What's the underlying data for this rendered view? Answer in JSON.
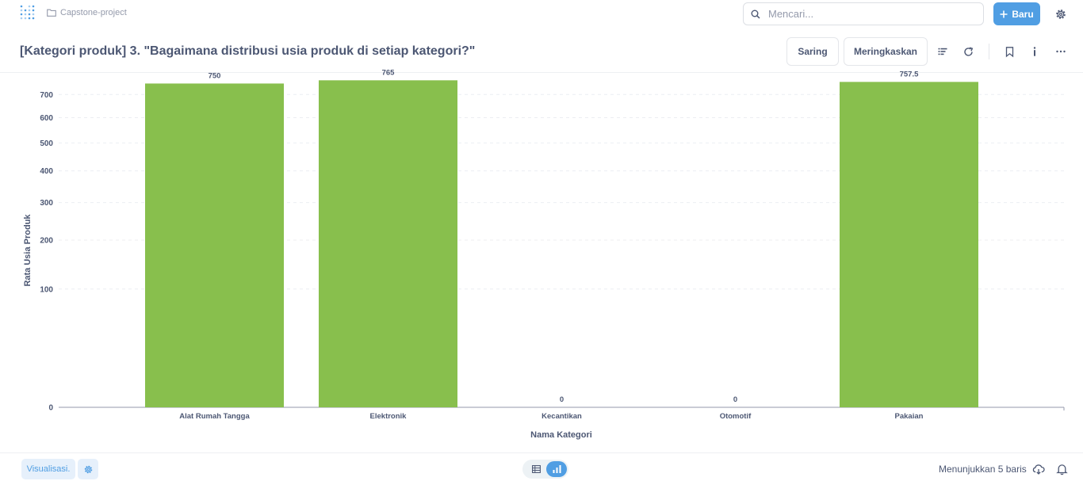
{
  "nav": {
    "collection": "Capstone-project",
    "search_placeholder": "Mencari...",
    "new_label": "Baru"
  },
  "header": {
    "title": "[Kategori produk] 3. \"Bagaimana distribusi usia produk di setiap kategori?\"",
    "filter_label": "Saring",
    "summarize_label": "Meringkaskan"
  },
  "footer": {
    "visualize_label": "Visualisasi.",
    "row_count": "Menunjukkan 5 baris"
  },
  "colors": {
    "accent": "#509ee3",
    "bar": "#88bf4d",
    "text": "#4c5773"
  },
  "chart_data": {
    "type": "bar",
    "xlabel": "Nama Kategori",
    "ylabel": "Rata Usia Produk",
    "categories": [
      "Alat Rumah Tangga",
      "Elektronik",
      "Kecantikan",
      "Otomotif",
      "Pakaian"
    ],
    "values": [
      750,
      765,
      0,
      0,
      757.5
    ],
    "value_labels": [
      "750",
      "765",
      "0",
      "0",
      "757.5"
    ],
    "y_scale": "sqrt",
    "yticks": [
      0,
      100,
      200,
      300,
      400,
      500,
      600,
      700
    ],
    "ylim": [
      0,
      800
    ],
    "grid": true,
    "legend": "none"
  }
}
